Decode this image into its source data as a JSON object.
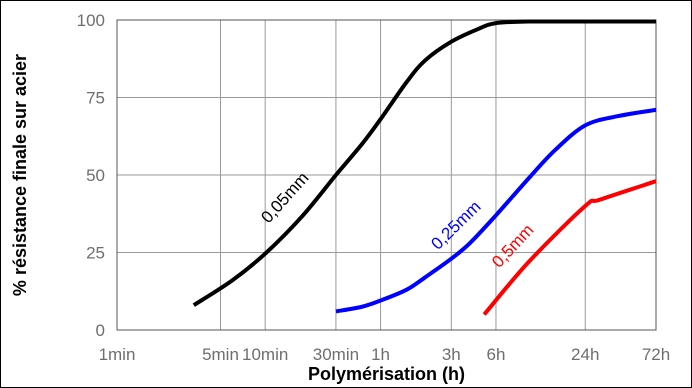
{
  "chart_data": {
    "type": "line",
    "title": "",
    "xlabel": "Polymérisation (h)",
    "ylabel": "% résistance finale sur acier",
    "x_scale": "log",
    "x_unit": "h",
    "xlim": [
      0.0167,
      72
    ],
    "ylim": [
      0,
      100
    ],
    "grid": true,
    "x_ticks": [
      {
        "label": "1min",
        "value": 0.0167
      },
      {
        "label": "5min",
        "value": 0.0833
      },
      {
        "label": "10min",
        "value": 0.1667
      },
      {
        "label": "30min",
        "value": 0.5
      },
      {
        "label": "1h",
        "value": 1
      },
      {
        "label": "3h",
        "value": 3
      },
      {
        "label": "6h",
        "value": 6
      },
      {
        "label": "24h",
        "value": 24
      },
      {
        "label": "72h",
        "value": 72
      }
    ],
    "y_ticks": [
      {
        "label": "0",
        "value": 0
      },
      {
        "label": "25",
        "value": 25
      },
      {
        "label": "50",
        "value": 50
      },
      {
        "label": "75",
        "value": 75
      },
      {
        "label": "100",
        "value": 100
      }
    ],
    "series": [
      {
        "name": "0,05mm",
        "color": "#000000",
        "x": [
          0.055,
          0.1,
          0.17,
          0.3,
          0.5,
          0.75,
          1.0,
          1.5,
          2.0,
          3.0,
          4.5,
          6.0,
          10,
          24,
          72
        ],
        "y": [
          8,
          16,
          25,
          37,
          50,
          60,
          68,
          80,
          87,
          93,
          97,
          99,
          99.5,
          99.5,
          99.5
        ]
      },
      {
        "name": "0,25mm",
        "color": "#0000ff",
        "x": [
          0.5,
          0.75,
          1.0,
          1.5,
          2.0,
          3.0,
          4.0,
          6.0,
          10,
          15,
          24,
          40,
          72
        ],
        "y": [
          6,
          7.5,
          9.5,
          13,
          17,
          23,
          28,
          37,
          49,
          58,
          66,
          69,
          71
        ]
      },
      {
        "name": "0,5mm",
        "color": "#ff0000",
        "x": [
          5.0,
          10,
          24,
          30,
          72
        ],
        "y": [
          5,
          22,
          40,
          42,
          48
        ]
      }
    ]
  }
}
